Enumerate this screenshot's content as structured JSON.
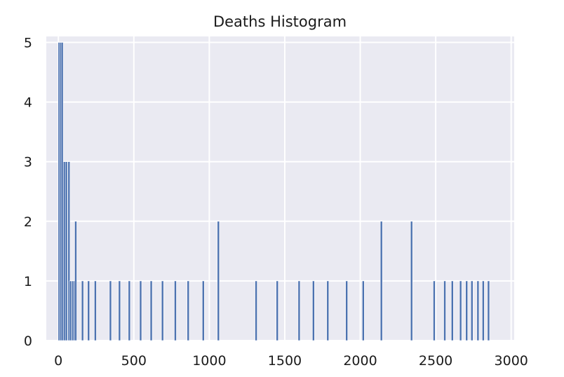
{
  "chart_data": {
    "type": "bar",
    "title": "Deaths Histogram",
    "xlabel": "",
    "ylabel": "",
    "xlim": [
      -80,
      3020
    ],
    "ylim": [
      0,
      5.1
    ],
    "xticks": [
      0,
      500,
      1000,
      1500,
      2000,
      2500,
      3000
    ],
    "yticks": [
      0,
      1,
      2,
      3,
      4,
      5
    ],
    "grid": true,
    "bar_color": "#4c72b0",
    "background": "#eaeaf2",
    "bar_width": 3,
    "x": [
      5,
      15,
      25,
      40,
      53,
      70,
      80,
      95,
      105,
      115,
      160,
      200,
      245,
      345,
      405,
      470,
      545,
      615,
      690,
      775,
      860,
      960,
      1060,
      1310,
      1450,
      1595,
      1690,
      1785,
      1910,
      2020,
      2140,
      2340,
      2490,
      2560,
      2610,
      2665,
      2705,
      2740,
      2780,
      2815,
      2850
    ],
    "values": [
      5,
      5,
      5,
      3,
      3,
      3,
      1,
      1,
      1,
      2,
      1,
      1,
      1,
      1,
      1,
      1,
      1,
      1,
      1,
      1,
      1,
      1,
      2,
      1,
      1,
      1,
      1,
      1,
      1,
      1,
      2,
      2,
      1,
      1,
      1,
      1,
      1,
      1,
      1,
      1,
      1
    ]
  }
}
